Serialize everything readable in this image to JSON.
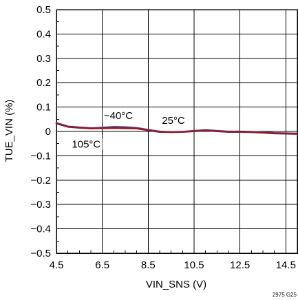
{
  "chart_data": {
    "type": "line",
    "xlabel": "VIN_SNS (V)",
    "ylabel": "TUE_VIN (%)",
    "xlim": [
      4.5,
      15.0
    ],
    "ylim": [
      -0.5,
      0.5
    ],
    "x_ticks": [
      4.5,
      6.5,
      8.5,
      10.5,
      12.5,
      14.5
    ],
    "x_tick_labels": [
      "4.5",
      "6.5",
      "8.5",
      "10.5",
      "12.5",
      "14.5"
    ],
    "y_ticks": [
      0.5,
      0.4,
      0.3,
      0.2,
      0.1,
      0,
      -0.1,
      -0.2,
      -0.3,
      -0.4,
      -0.5
    ],
    "y_tick_labels": [
      "0.5",
      "0.4",
      "0.3",
      "0.2",
      "0.1",
      "0",
      "−0.1",
      "−0.2",
      "−0.3",
      "−0.4",
      "−0.5"
    ],
    "grid": true,
    "series": [
      {
        "name": "−40°C",
        "color": "#3a3f8f",
        "x": [
          4.5,
          5.0,
          5.5,
          6.0,
          6.5,
          7.0,
          7.5,
          8.0,
          8.5,
          9.0,
          9.5,
          10.0,
          10.5,
          11.0,
          11.5,
          12.0,
          12.5,
          13.0,
          13.5,
          14.0,
          14.5,
          15.0
        ],
        "y": [
          0.035,
          0.021,
          0.017,
          0.014,
          0.016,
          0.019,
          0.018,
          0.015,
          0.007,
          0.0,
          -0.002,
          -0.001,
          0.003,
          0.006,
          0.003,
          0.0,
          0.0,
          -0.001,
          -0.003,
          -0.006,
          -0.007,
          -0.008
        ]
      },
      {
        "name": "25°C",
        "color": "#b0306a",
        "x": [
          4.5,
          5.0,
          5.5,
          6.0,
          6.5,
          7.0,
          7.5,
          8.0,
          8.5,
          9.0,
          9.5,
          10.0,
          10.5,
          11.0,
          11.5,
          12.0,
          12.5,
          13.0,
          13.5,
          14.0,
          14.5,
          15.0
        ],
        "y": [
          0.034,
          0.02,
          0.016,
          0.013,
          0.014,
          0.016,
          0.015,
          0.013,
          0.006,
          -0.001,
          -0.002,
          -0.001,
          0.002,
          0.005,
          0.002,
          -0.001,
          -0.001,
          -0.002,
          -0.004,
          -0.007,
          -0.008,
          -0.009
        ]
      },
      {
        "name": "105°C",
        "color": "#8a1c2e",
        "x": [
          4.5,
          5.0,
          5.5,
          6.0,
          6.5,
          7.0,
          7.5,
          8.0,
          8.5,
          9.0,
          9.5,
          10.0,
          10.5,
          11.0,
          11.5,
          12.0,
          12.5,
          13.0,
          13.5,
          14.0,
          14.5,
          15.0
        ],
        "y": [
          0.033,
          0.019,
          0.015,
          0.012,
          0.013,
          0.014,
          0.013,
          0.012,
          0.005,
          -0.002,
          -0.003,
          -0.002,
          0.001,
          0.004,
          0.001,
          -0.002,
          -0.002,
          -0.003,
          -0.005,
          -0.008,
          -0.009,
          -0.01
        ]
      }
    ],
    "annotations": [
      {
        "text": "−40°C",
        "x": 7.2,
        "y": 0.065
      },
      {
        "text": "25°C",
        "x": 9.6,
        "y": 0.045
      },
      {
        "text": "105°C",
        "x": 5.8,
        "y": -0.052
      }
    ],
    "figure_code": "2975 G25"
  }
}
